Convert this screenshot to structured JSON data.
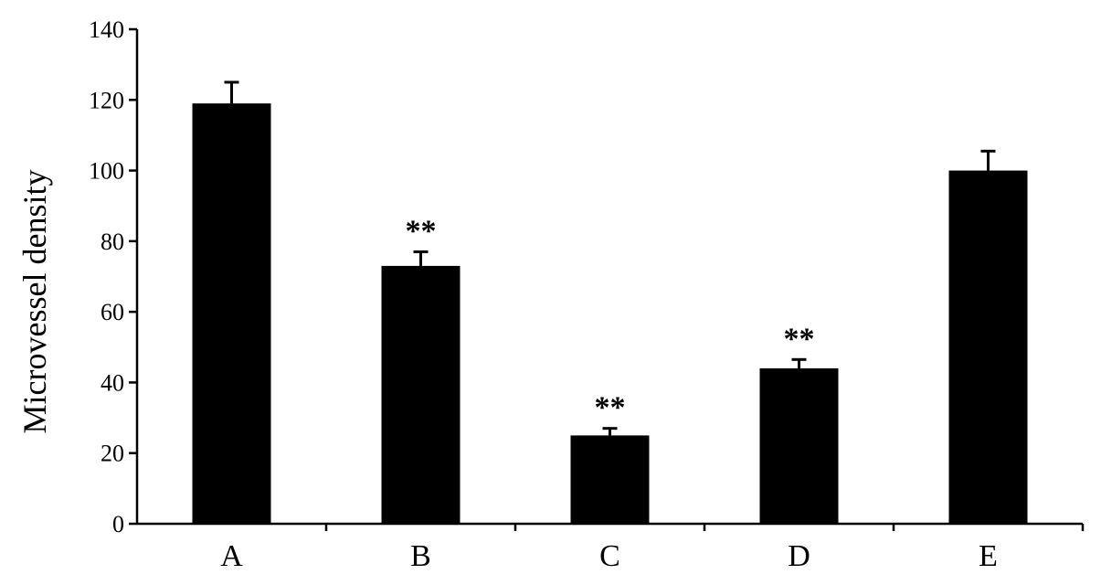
{
  "chart_data": {
    "type": "bar",
    "title": "",
    "xlabel": "",
    "ylabel": "Microvessel density",
    "categories": [
      "A",
      "B",
      "C",
      "D",
      "E"
    ],
    "values": [
      119,
      73,
      25,
      44,
      100
    ],
    "errors": [
      6,
      4,
      2,
      2.5,
      5.5
    ],
    "annotations": [
      "",
      "**",
      "**",
      "**",
      ""
    ],
    "ylim": [
      0,
      140
    ],
    "yticks": [
      0,
      20,
      40,
      60,
      80,
      100,
      120,
      140
    ],
    "grid": false,
    "legend": "none",
    "bar_color": "#000000"
  }
}
